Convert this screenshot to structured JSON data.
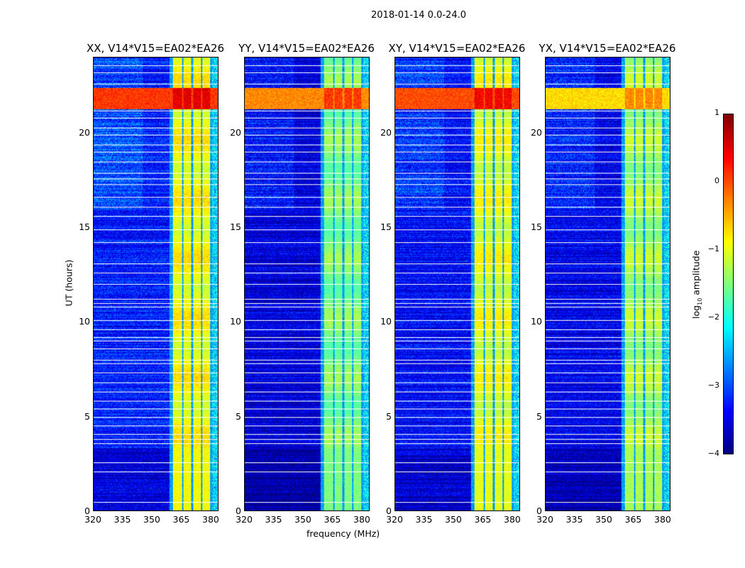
{
  "suptitle": "2018-01-14 0.0-24.0",
  "xlabel": "frequency (MHz)",
  "ylabel": "UT (hours)",
  "colorbar": {
    "label_main": "log",
    "label_sub": "10",
    "label_rest": " amplitude",
    "ticks": [
      "1",
      "0",
      "−1",
      "−2",
      "−3",
      "−4"
    ],
    "tick_values": [
      1,
      0,
      -1,
      -2,
      -3,
      -4
    ],
    "range": [
      -4,
      1
    ],
    "colormap": "jet"
  },
  "chart_data": {
    "type": "heatmap",
    "title": "2018-01-14 0.0-24.0",
    "xlabel": "frequency (MHz)",
    "ylabel": "UT (hours)",
    "xlim": [
      320,
      384
    ],
    "ylim": [
      0,
      24
    ],
    "xticks": [
      "320",
      "335",
      "350",
      "365",
      "380"
    ],
    "xtick_values": [
      320,
      335,
      350,
      365,
      380
    ],
    "yticks": [
      "0",
      "5",
      "10",
      "15",
      "20"
    ],
    "ytick_values": [
      0,
      5,
      10,
      15,
      20
    ],
    "panels": [
      {
        "title": "XX, V14*V15=EA02*EA26",
        "baseline": -3.4,
        "band_level": -0.9,
        "rfi_level": 0.1
      },
      {
        "title": "YY, V14*V15=EA02*EA26",
        "baseline": -3.7,
        "band_level": -1.5,
        "rfi_level": -0.3
      },
      {
        "title": "XY, V14*V15=EA02*EA26",
        "baseline": -3.5,
        "band_level": -1.0,
        "rfi_level": 0.0
      },
      {
        "title": "YX, V14*V15=EA02*EA26",
        "baseline": -3.6,
        "band_level": -1.3,
        "rfi_level": -0.7
      }
    ],
    "bright_bands_mhz": [
      [
        360.5,
        365.5
      ],
      [
        366.2,
        370.2
      ],
      [
        371,
        375
      ],
      [
        375.8,
        379.8
      ]
    ],
    "rfi_hours": [
      [
        21.3,
        22.4
      ]
    ],
    "flagged_hours": [
      0.45,
      2.05,
      2.55,
      3.55,
      3.8,
      4.05,
      4.5,
      4.95,
      5.4,
      5.8,
      6.3,
      6.8,
      7.3,
      7.8,
      8.0,
      8.6,
      9.0,
      9.2,
      9.6,
      10.1,
      10.8,
      11.0,
      11.2,
      12.0,
      12.6,
      13.1,
      14.2,
      14.9,
      15.6,
      16.1,
      16.6,
      17.3,
      17.6,
      17.9,
      18.5,
      19.0,
      19.4,
      19.9,
      20.3,
      20.8,
      21.2,
      22.6,
      23.2,
      23.6
    ]
  }
}
